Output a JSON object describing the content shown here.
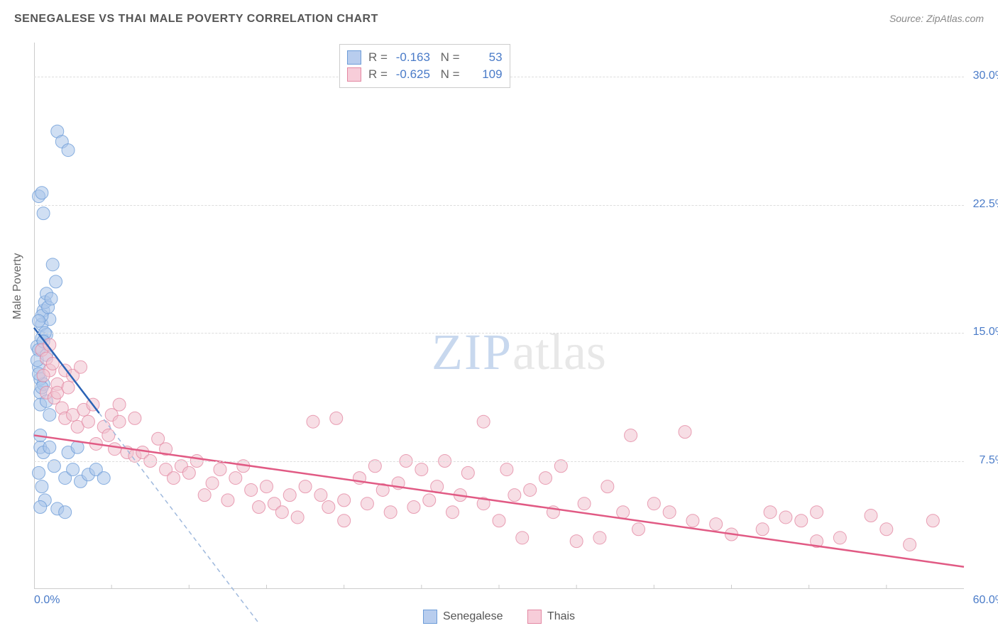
{
  "header": {
    "title": "SENEGALESE VS THAI MALE POVERTY CORRELATION CHART",
    "source": "Source: ZipAtlas.com"
  },
  "chart": {
    "type": "scatter",
    "y_label": "Male Poverty",
    "x_range": [
      0,
      60
    ],
    "y_range": [
      0,
      32
    ],
    "y_ticks": [
      7.5,
      15.0,
      22.5,
      30.0
    ],
    "y_tick_labels": [
      "7.5%",
      "15.0%",
      "22.5%",
      "30.0%"
    ],
    "x_tick_labels": {
      "min": "0.0%",
      "max": "60.0%"
    },
    "x_minor_ticks": [
      5,
      10,
      15,
      20,
      25,
      30,
      35,
      40,
      45,
      50,
      55
    ],
    "background_color": "#ffffff",
    "grid_color": "#dddddd",
    "axis_color": "#cccccc",
    "marker_radius": 9,
    "marker_opacity": 0.55,
    "watermark": {
      "text_a": "ZIP",
      "text_b": "atlas"
    },
    "series": [
      {
        "name": "Senegalese",
        "color_fill": "#a9c5ea",
        "color_stroke": "#6d9cd8",
        "swatch_fill": "#b8cdee",
        "swatch_stroke": "#6d9cd8",
        "R": "-0.163",
        "N": "53",
        "trend": {
          "x1": 0,
          "y1": 15.3,
          "x2": 4.2,
          "y2": 10.3,
          "stroke": "#2b63b5",
          "width": 2.5,
          "dash": "none",
          "ext_x2": 14.5,
          "ext_y2": -2,
          "ext_dash": "6,5",
          "ext_stroke": "#9fb9dd"
        },
        "points": [
          [
            0.2,
            14.2
          ],
          [
            0.3,
            13.0
          ],
          [
            0.4,
            12.3
          ],
          [
            0.5,
            15.5
          ],
          [
            0.5,
            14.7
          ],
          [
            0.3,
            14.0
          ],
          [
            0.6,
            16.3
          ],
          [
            0.7,
            16.8
          ],
          [
            0.8,
            17.3
          ],
          [
            0.2,
            13.4
          ],
          [
            0.4,
            11.5
          ],
          [
            0.6,
            12.0
          ],
          [
            0.4,
            10.8
          ],
          [
            0.8,
            14.9
          ],
          [
            0.4,
            8.3
          ],
          [
            1.0,
            15.8
          ],
          [
            1.2,
            19.0
          ],
          [
            1.4,
            18.0
          ],
          [
            0.3,
            23.0
          ],
          [
            0.5,
            23.2
          ],
          [
            0.6,
            22.0
          ],
          [
            1.5,
            26.8
          ],
          [
            1.8,
            26.2
          ],
          [
            2.2,
            25.7
          ],
          [
            0.8,
            11.0
          ],
          [
            1.0,
            10.2
          ],
          [
            0.4,
            9.0
          ],
          [
            0.6,
            8.0
          ],
          [
            1.0,
            8.3
          ],
          [
            0.3,
            6.8
          ],
          [
            0.5,
            6.0
          ],
          [
            0.7,
            5.2
          ],
          [
            0.4,
            4.8
          ],
          [
            1.3,
            7.2
          ],
          [
            2.0,
            6.5
          ],
          [
            2.5,
            7.0
          ],
          [
            3.0,
            6.3
          ],
          [
            2.2,
            8.0
          ],
          [
            2.8,
            8.3
          ],
          [
            3.5,
            6.7
          ],
          [
            4.0,
            7.0
          ],
          [
            4.5,
            6.5
          ],
          [
            1.5,
            4.7
          ],
          [
            2.0,
            4.5
          ],
          [
            0.5,
            16.0
          ],
          [
            0.7,
            15.0
          ],
          [
            0.9,
            16.5
          ],
          [
            1.1,
            17.0
          ],
          [
            0.3,
            15.7
          ],
          [
            0.6,
            14.5
          ],
          [
            0.8,
            13.7
          ],
          [
            0.3,
            12.6
          ],
          [
            0.5,
            11.8
          ]
        ]
      },
      {
        "name": "Thais",
        "color_fill": "#f1c2cf",
        "color_stroke": "#e388a3",
        "swatch_fill": "#f7cdd9",
        "swatch_stroke": "#e388a3",
        "R": "-0.625",
        "N": "109",
        "trend": {
          "x1": 0,
          "y1": 9.0,
          "x2": 60,
          "y2": 1.3,
          "stroke": "#e15a84",
          "width": 2.5,
          "dash": "none"
        },
        "points": [
          [
            0.5,
            14.0
          ],
          [
            0.8,
            13.5
          ],
          [
            1.0,
            12.8
          ],
          [
            1.2,
            13.2
          ],
          [
            1.5,
            12.0
          ],
          [
            1.0,
            14.3
          ],
          [
            0.6,
            12.5
          ],
          [
            0.8,
            11.5
          ],
          [
            1.3,
            11.2
          ],
          [
            1.5,
            11.5
          ],
          [
            1.8,
            10.6
          ],
          [
            2.0,
            12.8
          ],
          [
            2.2,
            11.8
          ],
          [
            2.0,
            10.0
          ],
          [
            2.5,
            12.5
          ],
          [
            2.5,
            10.2
          ],
          [
            2.8,
            9.5
          ],
          [
            3.0,
            13.0
          ],
          [
            3.2,
            10.5
          ],
          [
            3.5,
            9.8
          ],
          [
            3.8,
            10.8
          ],
          [
            4.0,
            8.5
          ],
          [
            4.5,
            9.5
          ],
          [
            4.8,
            9.0
          ],
          [
            5.0,
            10.2
          ],
          [
            5.2,
            8.2
          ],
          [
            5.5,
            9.8
          ],
          [
            5.5,
            10.8
          ],
          [
            6.0,
            8.0
          ],
          [
            6.5,
            10.0
          ],
          [
            6.5,
            7.8
          ],
          [
            7.0,
            8.0
          ],
          [
            7.5,
            7.5
          ],
          [
            8.0,
            8.8
          ],
          [
            8.5,
            7.0
          ],
          [
            8.5,
            8.2
          ],
          [
            9.0,
            6.5
          ],
          [
            9.5,
            7.2
          ],
          [
            10.0,
            6.8
          ],
          [
            10.5,
            7.5
          ],
          [
            11.0,
            5.5
          ],
          [
            11.5,
            6.2
          ],
          [
            12.0,
            7.0
          ],
          [
            12.5,
            5.2
          ],
          [
            13.0,
            6.5
          ],
          [
            13.5,
            7.2
          ],
          [
            14.0,
            5.8
          ],
          [
            14.5,
            4.8
          ],
          [
            15.0,
            6.0
          ],
          [
            15.5,
            5.0
          ],
          [
            16.0,
            4.5
          ],
          [
            16.5,
            5.5
          ],
          [
            17.0,
            4.2
          ],
          [
            17.5,
            6.0
          ],
          [
            18.0,
            9.8
          ],
          [
            18.5,
            5.5
          ],
          [
            19.0,
            4.8
          ],
          [
            19.5,
            10.0
          ],
          [
            20.0,
            5.2
          ],
          [
            20.0,
            4.0
          ],
          [
            21.0,
            6.5
          ],
          [
            21.5,
            5.0
          ],
          [
            22.0,
            7.2
          ],
          [
            22.5,
            5.8
          ],
          [
            23.0,
            4.5
          ],
          [
            23.5,
            6.2
          ],
          [
            24.0,
            7.5
          ],
          [
            24.5,
            4.8
          ],
          [
            25.0,
            7.0
          ],
          [
            25.5,
            5.2
          ],
          [
            26.0,
            6.0
          ],
          [
            26.5,
            7.5
          ],
          [
            27.0,
            4.5
          ],
          [
            27.5,
            5.5
          ],
          [
            28.0,
            6.8
          ],
          [
            29.0,
            9.8
          ],
          [
            29.0,
            5.0
          ],
          [
            30.0,
            4.0
          ],
          [
            30.5,
            7.0
          ],
          [
            31.0,
            5.5
          ],
          [
            31.5,
            3.0
          ],
          [
            32.0,
            5.8
          ],
          [
            33.0,
            6.5
          ],
          [
            33.5,
            4.5
          ],
          [
            34.0,
            7.2
          ],
          [
            35.0,
            2.8
          ],
          [
            35.5,
            5.0
          ],
          [
            36.5,
            3.0
          ],
          [
            37.0,
            6.0
          ],
          [
            38.0,
            4.5
          ],
          [
            38.5,
            9.0
          ],
          [
            39.0,
            3.5
          ],
          [
            40.0,
            5.0
          ],
          [
            41.0,
            4.5
          ],
          [
            42.0,
            9.2
          ],
          [
            42.5,
            4.0
          ],
          [
            44.0,
            3.8
          ],
          [
            45.0,
            3.2
          ],
          [
            47.0,
            3.5
          ],
          [
            47.5,
            4.5
          ],
          [
            48.5,
            4.2
          ],
          [
            49.5,
            4.0
          ],
          [
            50.5,
            4.5
          ],
          [
            50.5,
            2.8
          ],
          [
            52.0,
            3.0
          ],
          [
            54.0,
            4.3
          ],
          [
            55.0,
            3.5
          ],
          [
            56.5,
            2.6
          ],
          [
            58.0,
            4.0
          ]
        ]
      }
    ],
    "bottom_legend": [
      "Senegalese",
      "Thais"
    ]
  }
}
